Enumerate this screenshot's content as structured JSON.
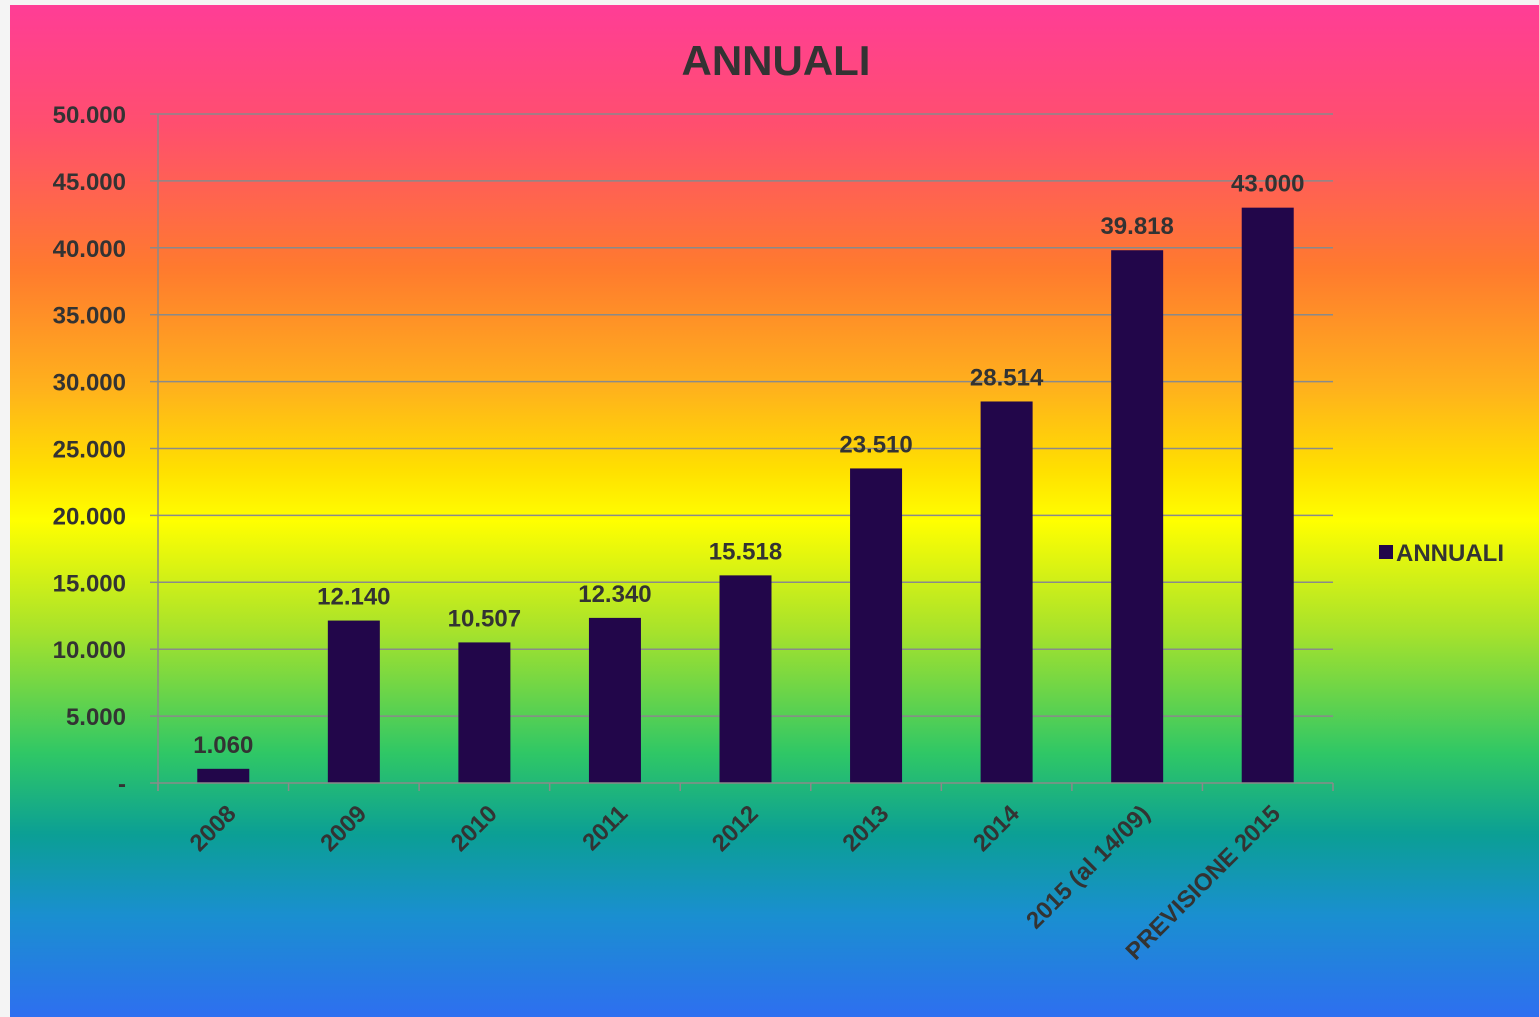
{
  "chart_data": {
    "type": "bar",
    "title": "ANNUALI",
    "categories": [
      "2008",
      "2009",
      "2010",
      "2011",
      "2012",
      "2013",
      "2014",
      "2015 (al 14/09)",
      "PREVISIONE 2015"
    ],
    "series": [
      {
        "name": "ANNUALI",
        "values": [
          1060,
          12140,
          10507,
          12340,
          15518,
          23510,
          28514,
          39818,
          43000
        ],
        "value_labels": [
          "1.060",
          "12.140",
          "10.507",
          "12.340",
          "15.518",
          "23.510",
          "28.514",
          "39.818",
          "43.000"
        ],
        "color": "#22064a"
      }
    ],
    "ylim": [
      0,
      50000
    ],
    "y_ticks": [
      0,
      5000,
      10000,
      15000,
      20000,
      25000,
      30000,
      35000,
      40000,
      45000,
      50000
    ],
    "y_tick_labels": [
      "-",
      "5.000",
      "10.000",
      "15.000",
      "20.000",
      "25.000",
      "30.000",
      "35.000",
      "40.000",
      "45.000",
      "50.000"
    ],
    "grid": true,
    "legend": "right",
    "xlabel": "",
    "ylabel": ""
  },
  "colors": {
    "bar": "#22064a",
    "grid": "#8a8a8a",
    "text": "#333333"
  }
}
